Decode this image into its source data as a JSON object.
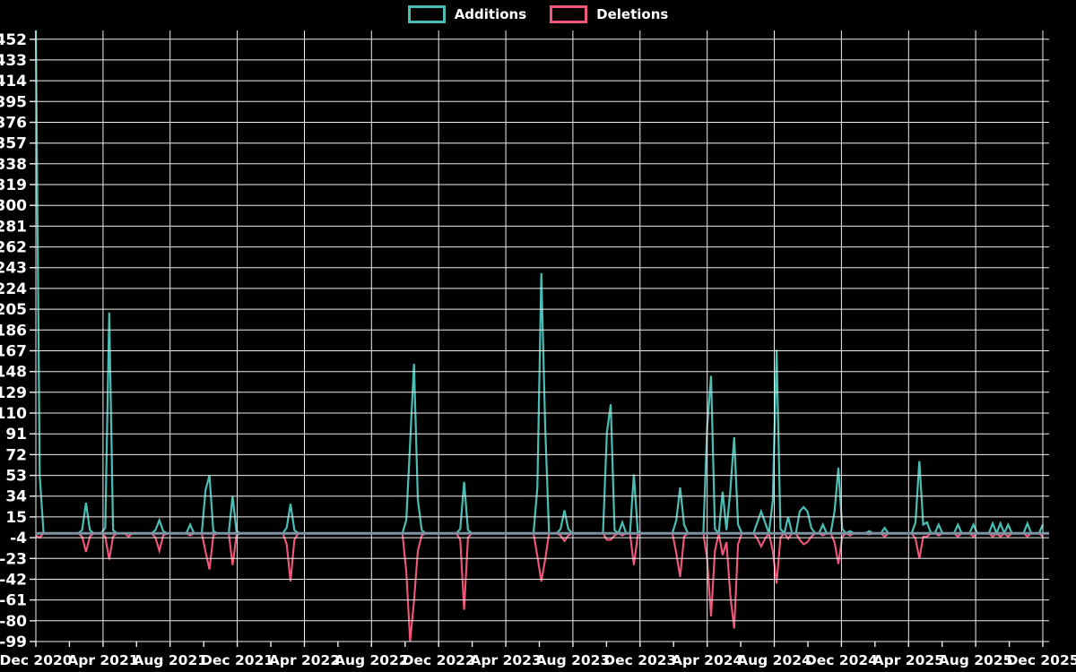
{
  "legend": {
    "items": [
      {
        "label": "Additions",
        "color": "#4abdb5"
      },
      {
        "label": "Deletions",
        "color": "#f25679"
      }
    ]
  },
  "style": {
    "background": "#000000",
    "grid_color": "#efefef",
    "zero_line_color": "#7e93a2",
    "text_color": "#ffffff"
  },
  "chart_data": {
    "type": "line",
    "title": "",
    "xlabel": "",
    "ylabel": "",
    "x_labels": [
      "Dec 2020",
      "Apr 2021",
      "Aug 2021",
      "Dec 2021",
      "Apr 2022",
      "Aug 2022",
      "Dec 2022",
      "Apr 2023",
      "Aug 2023",
      "Dec 2023",
      "Apr 2024",
      "Aug 2024",
      "Dec 2024",
      "Apr 2025",
      "Aug 2025",
      "Dec 2025"
    ],
    "y_ticks": [
      452,
      433,
      414,
      395,
      376,
      357,
      338,
      319,
      300,
      281,
      262,
      243,
      224,
      205,
      186,
      167,
      148,
      129,
      110,
      91,
      72,
      53,
      34,
      15,
      -4,
      -23,
      -42,
      -61,
      -80,
      -99
    ],
    "y_max": 460,
    "y_min": -99,
    "weeks_total": 261,
    "grid": true,
    "legend_position": "top",
    "series": [
      {
        "name": "Additions",
        "color": "#4abdb5"
      },
      {
        "name": "Deletions",
        "color": "#f25679"
      }
    ],
    "note": "points = [week_index_from_Dec2020, additions, deletions]; all unlisted weeks are 0,0",
    "points": [
      [
        0,
        460,
        -2
      ],
      [
        1,
        53,
        -4
      ],
      [
        12,
        3,
        -3
      ],
      [
        13,
        28,
        -17
      ],
      [
        14,
        3,
        -3
      ],
      [
        18,
        5,
        -3
      ],
      [
        19,
        202,
        -24
      ],
      [
        20,
        3,
        -3
      ],
      [
        24,
        0,
        -3
      ],
      [
        31,
        3,
        -4
      ],
      [
        32,
        12,
        -16
      ],
      [
        33,
        2,
        -2
      ],
      [
        40,
        8,
        -2
      ],
      [
        44,
        40,
        -17
      ],
      [
        45,
        53,
        -33
      ],
      [
        46,
        2,
        -2
      ],
      [
        51,
        34,
        -29
      ],
      [
        52,
        2,
        -2
      ],
      [
        65,
        5,
        -10
      ],
      [
        66,
        27,
        -44
      ],
      [
        67,
        3,
        -6
      ],
      [
        96,
        12,
        -35
      ],
      [
        97,
        83,
        -99
      ],
      [
        98,
        155,
        -62
      ],
      [
        99,
        31,
        -16
      ],
      [
        100,
        3,
        -2
      ],
      [
        110,
        4,
        -6
      ],
      [
        111,
        47,
        -70
      ],
      [
        112,
        3,
        -4
      ],
      [
        130,
        42,
        -21
      ],
      [
        131,
        238,
        -44
      ],
      [
        132,
        98,
        -24
      ],
      [
        136,
        4,
        -2
      ],
      [
        137,
        21,
        -7
      ],
      [
        138,
        4,
        -2
      ],
      [
        148,
        92,
        -6
      ],
      [
        149,
        118,
        -6
      ],
      [
        150,
        3,
        -2
      ],
      [
        152,
        10,
        -2
      ],
      [
        155,
        54,
        -29
      ],
      [
        156,
        2,
        -2
      ],
      [
        166,
        12,
        -18
      ],
      [
        167,
        42,
        -40
      ],
      [
        168,
        8,
        -3
      ],
      [
        174,
        98,
        -24
      ],
      [
        175,
        144,
        -76
      ],
      [
        176,
        4,
        -16
      ],
      [
        178,
        38,
        -20
      ],
      [
        179,
        3,
        -8
      ],
      [
        180,
        39,
        -57
      ],
      [
        181,
        88,
        -87
      ],
      [
        182,
        8,
        -10
      ],
      [
        187,
        10,
        -5
      ],
      [
        188,
        20,
        -12
      ],
      [
        189,
        10,
        -5
      ],
      [
        191,
        30,
        -16
      ],
      [
        192,
        168,
        -46
      ],
      [
        193,
        4,
        -4
      ],
      [
        195,
        15,
        -5
      ],
      [
        198,
        20,
        -6
      ],
      [
        199,
        24,
        -10
      ],
      [
        200,
        20,
        -8
      ],
      [
        201,
        5,
        -3
      ],
      [
        204,
        8,
        -2
      ],
      [
        207,
        20,
        -8
      ],
      [
        208,
        60,
        -28
      ],
      [
        209,
        4,
        -3
      ],
      [
        211,
        2,
        -2
      ],
      [
        216,
        2,
        -1
      ],
      [
        220,
        5,
        -3
      ],
      [
        228,
        10,
        -5
      ],
      [
        229,
        66,
        -23
      ],
      [
        230,
        8,
        -3
      ],
      [
        231,
        10,
        -3
      ],
      [
        234,
        8,
        -2
      ],
      [
        239,
        8,
        -3
      ],
      [
        243,
        8,
        -3
      ],
      [
        248,
        9,
        -3
      ],
      [
        250,
        9,
        -3
      ],
      [
        252,
        8,
        -3
      ],
      [
        257,
        9,
        -3
      ],
      [
        261,
        8,
        -3
      ]
    ]
  }
}
